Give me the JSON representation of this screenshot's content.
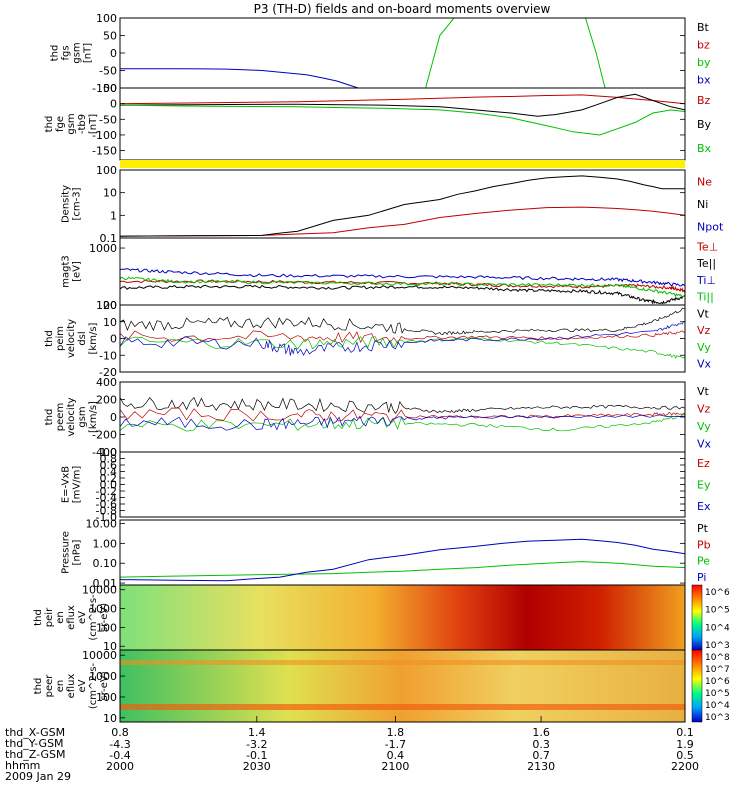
{
  "title": "P3 (TH-D) fields and on-board moments overview",
  "footer": {
    "row_labels": [
      "thd_X-GSM",
      "thd_Y-GSM",
      "thd_Z-GSM",
      "hhmm",
      "2009 Jan 29"
    ]
  },
  "chart_data": [
    {
      "type": "line",
      "ylabel": [
        "thd",
        "fgs",
        "gsm",
        "[nT]"
      ],
      "ticks": [
        "100",
        "50",
        "0",
        "-50",
        "-100"
      ],
      "ylim": [
        -100,
        100
      ],
      "series": [
        {
          "name": "Bt",
          "color": "#000000",
          "x": [],
          "values": []
        },
        {
          "name": "bz",
          "color": "#c00000",
          "x": [],
          "values": []
        },
        {
          "name": "by",
          "color": "#00c000",
          "x": [
            1.72,
            1.8,
            1.88,
            1.95
          ],
          "values": [
            -100,
            50,
            100,
            130
          ]
        },
        {
          "name": "bx",
          "color": "#0000c0",
          "x": [
            0.0,
            0.35,
            0.6,
            0.8,
            1.05,
            1.22,
            1.34
          ],
          "values": [
            -45,
            -45,
            -46,
            -50,
            -62,
            -80,
            -100
          ]
        }
      ],
      "extra_by_segment": {
        "x": [
          2.62,
          2.68,
          2.73
        ],
        "values": [
          100,
          0,
          -100
        ]
      }
    },
    {
      "type": "line",
      "ylabel": [
        "thd",
        "fge",
        "gsm",
        "-tb9",
        "[nT]"
      ],
      "ticks": [
        "50",
        "0",
        "-50",
        "-100",
        "-150"
      ],
      "ylim": [
        -180,
        50
      ],
      "series": [
        {
          "name": "Bz",
          "color": "#c00000",
          "x": [
            0.0,
            0.5,
            1.0,
            1.3,
            1.6,
            1.8,
            2.0,
            2.2,
            2.4,
            2.6,
            2.8,
            3.0,
            3.18
          ],
          "values": [
            0,
            3,
            6,
            10,
            14,
            17,
            21,
            23,
            26,
            28,
            20,
            10,
            0
          ]
        },
        {
          "name": "By",
          "color": "#000000",
          "x": [
            0.0,
            0.5,
            1.0,
            1.5,
            1.8,
            2.0,
            2.2,
            2.35,
            2.45,
            2.6,
            2.8,
            2.9,
            3.0,
            3.1,
            3.18
          ],
          "values": [
            -5,
            -3,
            -2,
            -5,
            -10,
            -20,
            -30,
            -40,
            -35,
            -20,
            20,
            30,
            10,
            -10,
            -20
          ]
        },
        {
          "name": "Bx",
          "color": "#00c000",
          "x": [
            0.0,
            0.5,
            1.0,
            1.5,
            1.8,
            2.0,
            2.2,
            2.4,
            2.55,
            2.7,
            2.9,
            3.0,
            3.1,
            3.18
          ],
          "values": [
            -5,
            -8,
            -10,
            -15,
            -20,
            -30,
            -45,
            -70,
            -90,
            -100,
            -60,
            -30,
            -20,
            -25
          ]
        }
      ],
      "yellow_band": true
    },
    {
      "type": "line",
      "ylabel": [
        "Density",
        "[cm-3]"
      ],
      "ticks": [
        "100",
        "10",
        "1",
        "0.1"
      ],
      "ylim": [
        0.1,
        100
      ],
      "scale": "log",
      "series": [
        {
          "name": "Ne",
          "color": "#c00000",
          "x": [
            0.0,
            0.8,
            1.2,
            1.6,
            2.0,
            2.4,
            2.6,
            2.8,
            3.0,
            3.18
          ],
          "values": [
            0.12,
            0.13,
            0.17,
            0.4,
            1.2,
            2.2,
            2.3,
            2.0,
            1.5,
            1.0
          ]
        },
        {
          "name": "Ni",
          "color": "#000000",
          "x": [
            0.0,
            0.8,
            1.0,
            1.4,
            1.8,
            2.0,
            2.2,
            2.4,
            2.6,
            2.8,
            2.95,
            3.05,
            3.18
          ],
          "values": [
            0.12,
            0.13,
            0.2,
            1.0,
            5.0,
            12,
            25,
            45,
            55,
            40,
            22,
            15,
            15
          ]
        },
        {
          "name": "Npot",
          "color": "#0000c0",
          "x": [],
          "values": []
        }
      ]
    },
    {
      "type": "line",
      "ylabel": [
        "magt3",
        "[eV]"
      ],
      "ticks": [
        "1000",
        "100"
      ],
      "ylim": [
        100,
        1500
      ],
      "scale": "log",
      "series": [
        {
          "name": "Te⊥",
          "color": "#c00000",
          "x": [
            0.0,
            0.6,
            1.2,
            1.8,
            2.2,
            2.6,
            2.9,
            3.1,
            3.18
          ],
          "values": [
            260,
            260,
            250,
            240,
            220,
            210,
            220,
            200,
            180
          ]
        },
        {
          "name": "Te||",
          "color": "#000000",
          "x": [
            0.0,
            0.4,
            0.8,
            1.2,
            1.6,
            2.0,
            2.3,
            2.6,
            2.8,
            2.95,
            3.05,
            3.18
          ],
          "values": [
            200,
            210,
            210,
            200,
            210,
            200,
            180,
            175,
            160,
            120,
            110,
            140
          ]
        },
        {
          "name": "Ti⊥",
          "color": "#0000c0",
          "x": [
            0.0,
            0.3,
            0.8,
            1.4,
            2.0,
            2.5,
            2.8,
            3.0,
            3.18
          ],
          "values": [
            420,
            380,
            330,
            320,
            310,
            290,
            280,
            250,
            220
          ]
        },
        {
          "name": "Ti||",
          "color": "#00c000",
          "x": [
            0.0,
            0.3,
            0.8,
            1.4,
            2.0,
            2.5,
            2.8,
            3.0,
            3.18
          ],
          "values": [
            300,
            260,
            250,
            240,
            230,
            225,
            220,
            180,
            140
          ]
        }
      ]
    },
    {
      "type": "line",
      "ylabel": [
        "thd",
        "peim",
        "velocity",
        "dsl",
        "[km/s]"
      ],
      "ticks": [
        "20",
        "10",
        "0",
        "-10",
        "-20"
      ],
      "ylim": [
        -20,
        20
      ],
      "noisy_until": 1.6,
      "series": [
        {
          "name": "Vt",
          "color": "#000000",
          "x": [
            0.0,
            0.5,
            1.0,
            1.5,
            1.8,
            2.0,
            2.4,
            2.8,
            3.0,
            3.18
          ],
          "values": [
            8,
            9,
            10,
            7,
            3,
            4,
            5,
            5,
            10,
            18
          ]
        },
        {
          "name": "Vz",
          "color": "#c00000",
          "x": [
            0.0,
            1.0,
            1.5,
            2.0,
            2.5,
            3.0,
            3.18
          ],
          "values": [
            1,
            1,
            0,
            1,
            0,
            2,
            4
          ]
        },
        {
          "name": "Vy",
          "color": "#00c000",
          "x": [
            0.0,
            1.0,
            1.5,
            2.0,
            2.5,
            3.0,
            3.18
          ],
          "values": [
            -2,
            -3,
            -2,
            0,
            -3,
            -8,
            -12
          ]
        },
        {
          "name": "Vx",
          "color": "#0000c0",
          "x": [
            0.0,
            0.8,
            1.0,
            1.4,
            1.8,
            2.4,
            3.0,
            3.18
          ],
          "values": [
            -2,
            -3,
            -8,
            -4,
            -1,
            0,
            4,
            10
          ]
        }
      ]
    },
    {
      "type": "line",
      "ylabel": [
        "thd",
        "peem",
        "velocity",
        "gsm",
        "[km/s]"
      ],
      "ticks": [
        "400",
        "200",
        "0",
        "-200",
        "-400"
      ],
      "ylim": [
        -400,
        400
      ],
      "noisy_until": 1.6,
      "series": [
        {
          "name": "Vt",
          "color": "#000000",
          "x": [
            0.0,
            0.5,
            1.0,
            1.5,
            1.8,
            2.0,
            2.4,
            2.8,
            3.18
          ],
          "values": [
            160,
            150,
            140,
            120,
            60,
            80,
            110,
            120,
            100
          ]
        },
        {
          "name": "Vz",
          "color": "#c00000",
          "x": [
            0.0,
            1.0,
            1.5,
            2.0,
            2.5,
            3.0,
            3.18
          ],
          "values": [
            40,
            20,
            10,
            0,
            10,
            30,
            40
          ]
        },
        {
          "name": "Vy",
          "color": "#00c000",
          "x": [
            0.0,
            1.0,
            1.5,
            2.0,
            2.5,
            3.0,
            3.18
          ],
          "values": [
            -100,
            -90,
            -70,
            -90,
            -150,
            -60,
            20
          ]
        },
        {
          "name": "Vx",
          "color": "#0000c0",
          "x": [
            0.0,
            0.8,
            1.2,
            1.6,
            2.0,
            3.18
          ],
          "values": [
            -60,
            -90,
            -60,
            -20,
            0,
            10
          ]
        }
      ]
    },
    {
      "type": "line",
      "ylabel": [
        "E=-VxB",
        "[mV/m]"
      ],
      "ticks": [
        "1.0",
        "0.8",
        "0.6",
        "0.4",
        "0.2",
        "0.0",
        "-0.2",
        "-0.4",
        "-0.6",
        "-0.8",
        "-1.0"
      ],
      "ylim": [
        -1,
        1
      ],
      "series": [
        {
          "name": "Ez",
          "color": "#c00000",
          "x": [],
          "values": []
        },
        {
          "name": "Ey",
          "color": "#00c000",
          "x": [],
          "values": []
        },
        {
          "name": "Ex",
          "color": "#0000c0",
          "x": [],
          "values": []
        }
      ]
    },
    {
      "type": "line",
      "ylabel": [
        "Pressure",
        "[nPa]"
      ],
      "ticks": [
        "10.00",
        "1.00",
        "0.10",
        "0.01"
      ],
      "ylim": [
        0.008,
        15
      ],
      "scale": "log",
      "series": [
        {
          "name": "Pt",
          "color": "#000000",
          "x": [],
          "values": []
        },
        {
          "name": "Pb",
          "color": "#c00000",
          "x": [],
          "values": []
        },
        {
          "name": "Pe",
          "color": "#00c000",
          "x": [
            0.0,
            0.6,
            1.2,
            1.6,
            2.0,
            2.4,
            2.6,
            2.8,
            3.0,
            3.18
          ],
          "values": [
            0.02,
            0.025,
            0.03,
            0.04,
            0.06,
            0.1,
            0.12,
            0.1,
            0.07,
            0.06
          ]
        },
        {
          "name": "Pi",
          "color": "#0000c0",
          "x": [
            0.0,
            0.6,
            0.9,
            1.2,
            1.6,
            2.0,
            2.3,
            2.6,
            2.8,
            3.0,
            3.18
          ],
          "values": [
            0.015,
            0.013,
            0.02,
            0.05,
            0.25,
            0.7,
            1.3,
            1.6,
            1.1,
            0.5,
            0.3
          ]
        }
      ]
    },
    {
      "type": "heatmap",
      "ylabel": [
        "thd",
        "peir",
        "en",
        "eflux",
        "eV",
        "(cm^2-s-",
        "sr-eV)"
      ],
      "ticks": [
        "10000",
        "1000",
        "100",
        "10"
      ],
      "colorbar_ticks": [
        "10^6",
        "10^5",
        "10^4",
        "10^3"
      ]
    },
    {
      "type": "heatmap",
      "ylabel": [
        "thd",
        "peer",
        "en",
        "eflux",
        "eV",
        "(cm^2-s-",
        "sr-eV)"
      ],
      "ticks": [
        "10000",
        "1000",
        "100",
        "10"
      ],
      "colorbar_ticks": [
        "10^8",
        "10^7",
        "10^6",
        "10^5",
        "10^4",
        "10^3"
      ]
    }
  ],
  "xaxis": {
    "positions": [
      0.0,
      0.5,
      1.0,
      1.5,
      2.0,
      2.5,
      3.0
    ],
    "thd_X_GSM": [
      "0.8",
      "",
      "1.4",
      "",
      "1.8",
      "",
      "1.6",
      "",
      "0.1"
    ],
    "rows": [
      [
        "0.8",
        "1.4",
        "1.8",
        "1.6",
        "0.1"
      ],
      [
        "-4.3",
        "-3.2",
        "-1.7",
        "0.3",
        "1.9"
      ],
      [
        "-0.4",
        "-0.1",
        "0.4",
        "0.7",
        "0.5"
      ],
      [
        "2000",
        "2030",
        "2100",
        "2130",
        "2200"
      ]
    ],
    "tick_hours": [
      0,
      0.5,
      1.0,
      1.5,
      2.0
    ]
  }
}
